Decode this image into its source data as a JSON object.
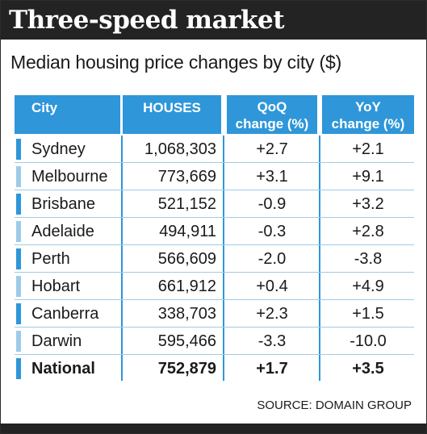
{
  "chart_data": {
    "type": "table",
    "title": "Three-speed market",
    "subtitle": "Median housing price changes by city ($)",
    "columns": [
      {
        "line1": "City",
        "line2": ""
      },
      {
        "line1": "HOUSES",
        "line2": ""
      },
      {
        "line1": "QoQ",
        "line2": "change (%)"
      },
      {
        "line1": "YoY",
        "line2": "change (%)"
      }
    ],
    "rows": [
      {
        "city": "Sydney",
        "houses": "1,068,303",
        "qoq": "+2.7",
        "yoy": "+2.1",
        "marker_color": "#2f96d9"
      },
      {
        "city": "Melbourne",
        "houses": "773,669",
        "qoq": "+3.1",
        "yoy": "+9.1",
        "marker_color": "#9fcbe8"
      },
      {
        "city": "Brisbane",
        "houses": "521,152",
        "qoq": "-0.9",
        "yoy": "+3.2",
        "marker_color": "#2f96d9"
      },
      {
        "city": "Adelaide",
        "houses": "494,911",
        "qoq": "-0.3",
        "yoy": "+2.8",
        "marker_color": "#9fcbe8"
      },
      {
        "city": "Perth",
        "houses": "566,609",
        "qoq": "-2.0",
        "yoy": "-3.8",
        "marker_color": "#2f96d9"
      },
      {
        "city": "Hobart",
        "houses": "661,912",
        "qoq": "+0.4",
        "yoy": "+4.9",
        "marker_color": "#9fcbe8"
      },
      {
        "city": "Canberra",
        "houses": "338,703",
        "qoq": "+2.3",
        "yoy": "+1.5",
        "marker_color": "#2f96d9"
      },
      {
        "city": "Darwin",
        "houses": "595,466",
        "qoq": "-3.3",
        "yoy": "-10.0",
        "marker_color": "#9fcbe8"
      },
      {
        "city": "National",
        "houses": "752,879",
        "qoq": "+1.7",
        "yoy": "+3.5",
        "marker_color": "#2f96d9",
        "bold": true
      }
    ],
    "source": "SOURCE: DOMAIN GROUP",
    "header_color": "#2f96d9",
    "title_bar_color": "#232323"
  }
}
